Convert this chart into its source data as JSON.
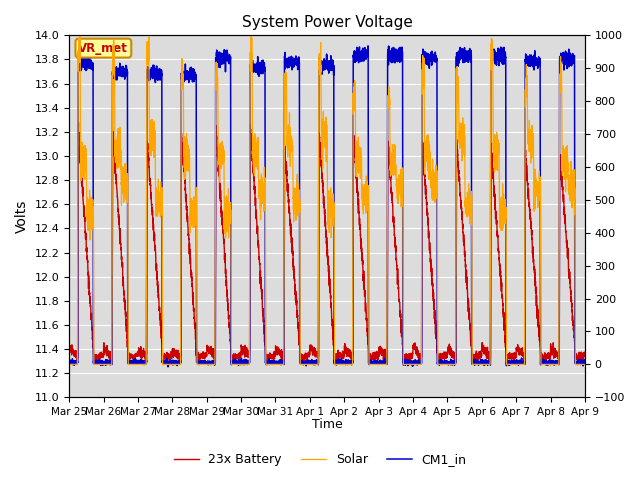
{
  "title": "System Power Voltage",
  "xlabel": "Time",
  "ylabel": "Volts",
  "ylim_left": [
    11.0,
    14.0
  ],
  "ylim_right": [
    -100,
    1000
  ],
  "colors": {
    "battery": "#CC0000",
    "solar": "#FFA500",
    "cm1": "#0000CC",
    "background": "#DCDCDC",
    "grid": "#FFFFFF",
    "annotation_bg": "#FFFF99",
    "annotation_border": "#CC8800",
    "annotation_text": "#CC0000"
  },
  "legend_labels": [
    "23x Battery",
    "Solar",
    "CM1_in"
  ],
  "annotation_text": "VR_met",
  "n_days": 15,
  "n_per_day": 288,
  "tick_labels": [
    "Mar 25",
    "Mar 26",
    "Mar 27",
    "Mar 28",
    "Mar 29",
    "Mar 30",
    "Mar 31",
    "Apr 1",
    "Apr 2",
    "Apr 3",
    "Apr 4",
    "Apr 5",
    "Apr 6",
    "Apr 7",
    "Apr 8",
    "Apr 9"
  ]
}
